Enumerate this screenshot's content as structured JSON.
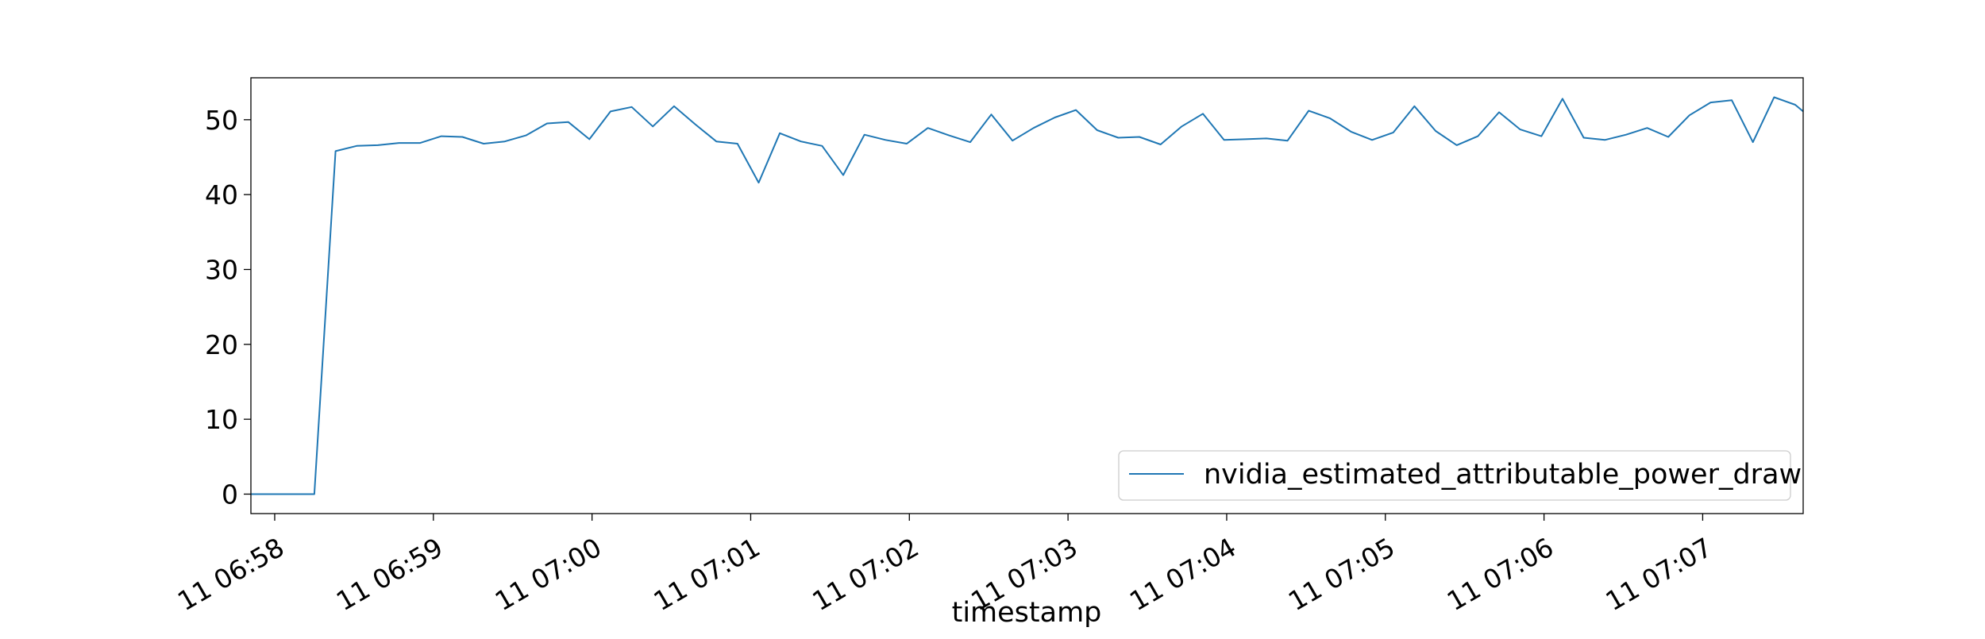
{
  "chart_data": {
    "type": "line",
    "title": "",
    "xlabel": "timestamp",
    "ylabel": "",
    "ylim": [
      -2.6,
      55.6
    ],
    "xlim": [
      "11 06:57:51",
      "11 07:07:38"
    ],
    "yticks": [
      0,
      10,
      20,
      30,
      40,
      50
    ],
    "xticks": [
      "11 06:58",
      "11 06:59",
      "11 07:00",
      "11 07:01",
      "11 07:02",
      "11 07:03",
      "11 07:04",
      "11 07:05",
      "11 07:06",
      "11 07:07"
    ],
    "grid": false,
    "legend": {
      "position": "bottom-right"
    },
    "series": [
      {
        "name": "nvidia_estimated_attributable_power_draw",
        "color": "#1f77b4",
        "x": [
          "11 06:57:51",
          "11 06:57:59",
          "11 06:58:07",
          "11 06:58:15",
          "11 06:58:23",
          "11 06:58:31",
          "11 06:58:39",
          "11 06:58:47",
          "11 06:58:55",
          "11 06:59:03",
          "11 06:59:11",
          "11 06:59:19",
          "11 06:59:27",
          "11 06:59:35",
          "11 06:59:43",
          "11 06:59:51",
          "11 06:59:59",
          "11 07:00:07",
          "11 07:00:15",
          "11 07:00:23",
          "11 07:00:31",
          "11 07:00:39",
          "11 07:00:47",
          "11 07:00:55",
          "11 07:01:03",
          "11 07:01:11",
          "11 07:01:19",
          "11 07:01:27",
          "11 07:01:35",
          "11 07:01:43",
          "11 07:01:51",
          "11 07:01:59",
          "11 07:02:07",
          "11 07:02:15",
          "11 07:02:23",
          "11 07:02:31",
          "11 07:02:39",
          "11 07:02:47",
          "11 07:02:55",
          "11 07:03:03",
          "11 07:03:11",
          "11 07:03:19",
          "11 07:03:27",
          "11 07:03:35",
          "11 07:03:43",
          "11 07:03:51",
          "11 07:03:59",
          "11 07:04:07",
          "11 07:04:15",
          "11 07:04:23",
          "11 07:04:31",
          "11 07:04:39",
          "11 07:04:47",
          "11 07:04:55",
          "11 07:05:03",
          "11 07:05:11",
          "11 07:05:19",
          "11 07:05:27",
          "11 07:05:35",
          "11 07:05:43",
          "11 07:05:51",
          "11 07:05:59",
          "11 07:06:07",
          "11 07:06:15",
          "11 07:06:23",
          "11 07:06:31",
          "11 07:06:39",
          "11 07:06:47",
          "11 07:06:55",
          "11 07:07:03",
          "11 07:07:11",
          "11 07:07:19",
          "11 07:07:27",
          "11 07:07:35",
          "11 07:07:38"
        ],
        "values": [
          0,
          0,
          0,
          0,
          45.8,
          46.5,
          46.6,
          46.9,
          46.9,
          47.8,
          47.7,
          46.8,
          47.1,
          47.9,
          49.5,
          49.7,
          47.4,
          51.1,
          51.7,
          49.1,
          51.8,
          49.4,
          47.1,
          46.8,
          41.6,
          48.2,
          47.1,
          46.5,
          42.6,
          48.0,
          47.3,
          46.8,
          48.9,
          47.9,
          47.0,
          50.7,
          47.2,
          48.9,
          50.3,
          51.3,
          48.6,
          47.6,
          47.7,
          46.7,
          49.1,
          50.8,
          47.3,
          47.4,
          47.5,
          47.2,
          51.2,
          50.2,
          48.4,
          47.3,
          48.3,
          51.8,
          48.5,
          46.6,
          47.8,
          51.0,
          48.7,
          47.8,
          52.8,
          47.6,
          47.3,
          48.0,
          48.9,
          47.7,
          50.6,
          52.3,
          52.6,
          47.0,
          53.0,
          52.0,
          51.1
        ]
      }
    ]
  }
}
